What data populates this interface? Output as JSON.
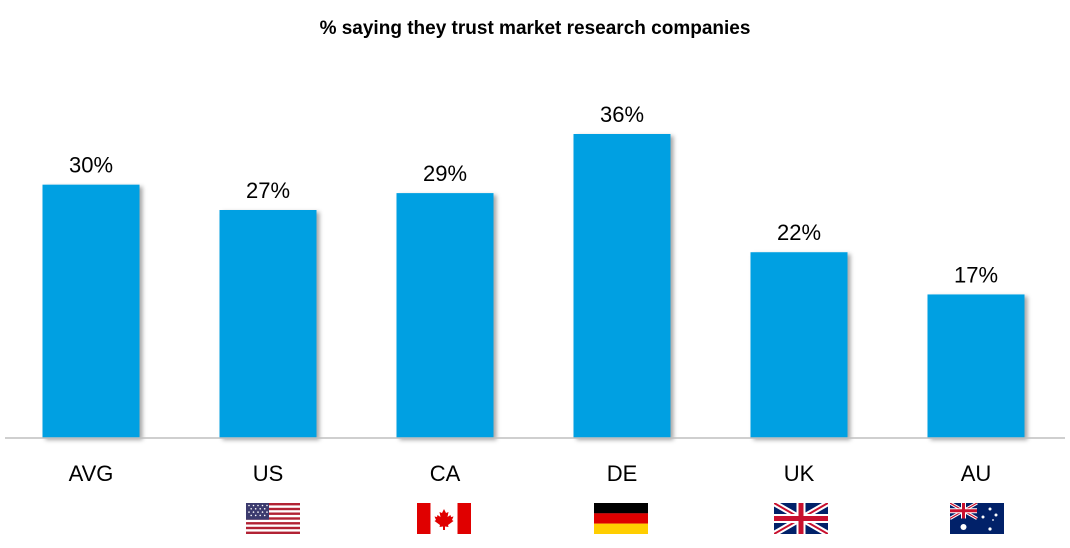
{
  "chart_data": {
    "type": "bar",
    "title": "% saying they trust market research companies",
    "categories": [
      "AVG",
      "US",
      "CA",
      "DE",
      "UK",
      "AU"
    ],
    "values": [
      30,
      27,
      29,
      36,
      22,
      17
    ],
    "value_labels": [
      "30%",
      "27%",
      "29%",
      "36%",
      "22%",
      "17%"
    ],
    "xlabel": "",
    "ylabel": "",
    "ylim": [
      0,
      45
    ],
    "grid": false,
    "bar_color": "#04A0E2",
    "flags": [
      null,
      "us-flag",
      "ca-flag",
      "de-flag",
      "uk-flag",
      "au-flag"
    ]
  }
}
